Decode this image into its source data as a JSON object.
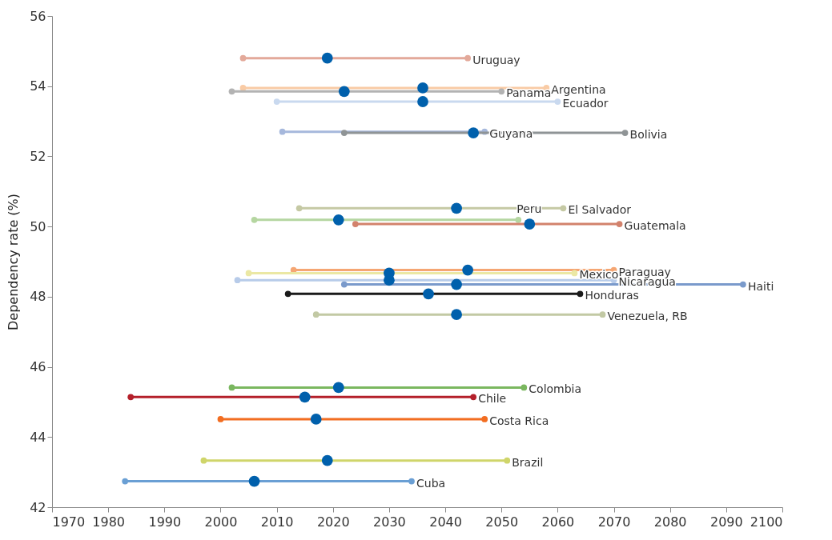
{
  "chart_data": {
    "type": "line",
    "ylabel": "Dependency rate (%)",
    "xlim": [
      1970,
      2100
    ],
    "xticks": [
      1970,
      1980,
      1990,
      2000,
      2010,
      2020,
      2030,
      2040,
      2050,
      2060,
      2070,
      2080,
      2090,
      2100
    ],
    "ylim": [
      42,
      56
    ],
    "yticks": [
      42,
      44,
      46,
      48,
      50,
      52,
      54,
      56
    ],
    "grid": false,
    "marker": "circle",
    "series": [
      {
        "name": "Uruguay",
        "color": "#e3a99a",
        "x": [
          2004,
          2044
        ],
        "values": [
          54.8,
          54.8
        ]
      },
      {
        "name": "Argentina",
        "color": "#f9cba5",
        "x": [
          2004,
          2058
        ],
        "values": [
          53.95,
          53.95
        ]
      },
      {
        "name": "Panama",
        "color": "#b3b3b3",
        "x": [
          2002,
          2050
        ],
        "values": [
          53.85,
          53.85
        ]
      },
      {
        "name": "Ecuador",
        "color": "#c9d9ef",
        "x": [
          2010,
          2060
        ],
        "values": [
          53.56,
          53.56
        ]
      },
      {
        "name": "Guyana",
        "color": "#a6b8dc",
        "x": [
          2011,
          2047
        ],
        "values": [
          52.7,
          52.7
        ]
      },
      {
        "name": "Bolivia",
        "color": "#8f9496",
        "x": [
          2022,
          2072
        ],
        "values": [
          52.67,
          52.67
        ]
      },
      {
        "name": "El Salvador",
        "color": "#c5c9a4",
        "x": [
          2014,
          2061
        ],
        "values": [
          50.52,
          50.52
        ]
      },
      {
        "name": "Peru",
        "color": "#b5d6a1",
        "x": [
          2006,
          2053
        ],
        "values": [
          50.19,
          50.19
        ]
      },
      {
        "name": "Guatemala",
        "color": "#d2826c",
        "x": [
          2024,
          2071
        ],
        "values": [
          50.07,
          50.07
        ]
      },
      {
        "name": "Paraguay",
        "color": "#f5a673",
        "x": [
          2013,
          2070
        ],
        "values": [
          48.76,
          48.76
        ]
      },
      {
        "name": "Mexico",
        "color": "#ebe8a4",
        "x": [
          2005,
          2063
        ],
        "values": [
          48.67,
          48.67
        ]
      },
      {
        "name": "Nicaragua",
        "color": "#b7cbe9",
        "x": [
          2003,
          2070
        ],
        "values": [
          48.47,
          48.47
        ]
      },
      {
        "name": "Haiti",
        "color": "#7a9acb",
        "x": [
          2022,
          2093
        ],
        "values": [
          48.35,
          48.35
        ]
      },
      {
        "name": "Honduras",
        "color": "#1a1a1a",
        "x": [
          2012,
          2064
        ],
        "values": [
          48.08,
          48.08
        ]
      },
      {
        "name": "Venezuela, RB",
        "color": "#c2c9a4",
        "x": [
          2017,
          2068
        ],
        "values": [
          47.49,
          47.49
        ]
      },
      {
        "name": "Colombia",
        "color": "#7ab75f",
        "x": [
          2002,
          2054
        ],
        "values": [
          45.41,
          45.41
        ]
      },
      {
        "name": "Chile",
        "color": "#b41f2a",
        "x": [
          1984,
          2045
        ],
        "values": [
          45.14,
          45.14
        ]
      },
      {
        "name": "Costa Rica",
        "color": "#f26d21",
        "x": [
          2000,
          2047
        ],
        "values": [
          44.51,
          44.51
        ]
      },
      {
        "name": "Brazil",
        "color": "#cfd56a",
        "x": [
          1997,
          2051
        ],
        "values": [
          43.33,
          43.33
        ]
      },
      {
        "name": "Cuba",
        "color": "#6a9fd4",
        "x": [
          1983,
          2034
        ],
        "values": [
          42.74,
          42.74
        ]
      },
      {
        "type": "scatter",
        "color": "#0060ac",
        "x": [
          2019,
          2036,
          2022,
          2036,
          2045,
          2042,
          2021,
          2055,
          2044,
          2030,
          2030,
          2042,
          2037,
          2042,
          2021,
          2015,
          2017,
          2019,
          2006
        ],
        "values": [
          54.8,
          53.95,
          53.85,
          53.56,
          52.67,
          50.52,
          50.19,
          50.07,
          48.76,
          48.67,
          48.47,
          48.35,
          48.08,
          47.49,
          45.41,
          45.14,
          44.51,
          43.33,
          42.74
        ]
      }
    ]
  }
}
